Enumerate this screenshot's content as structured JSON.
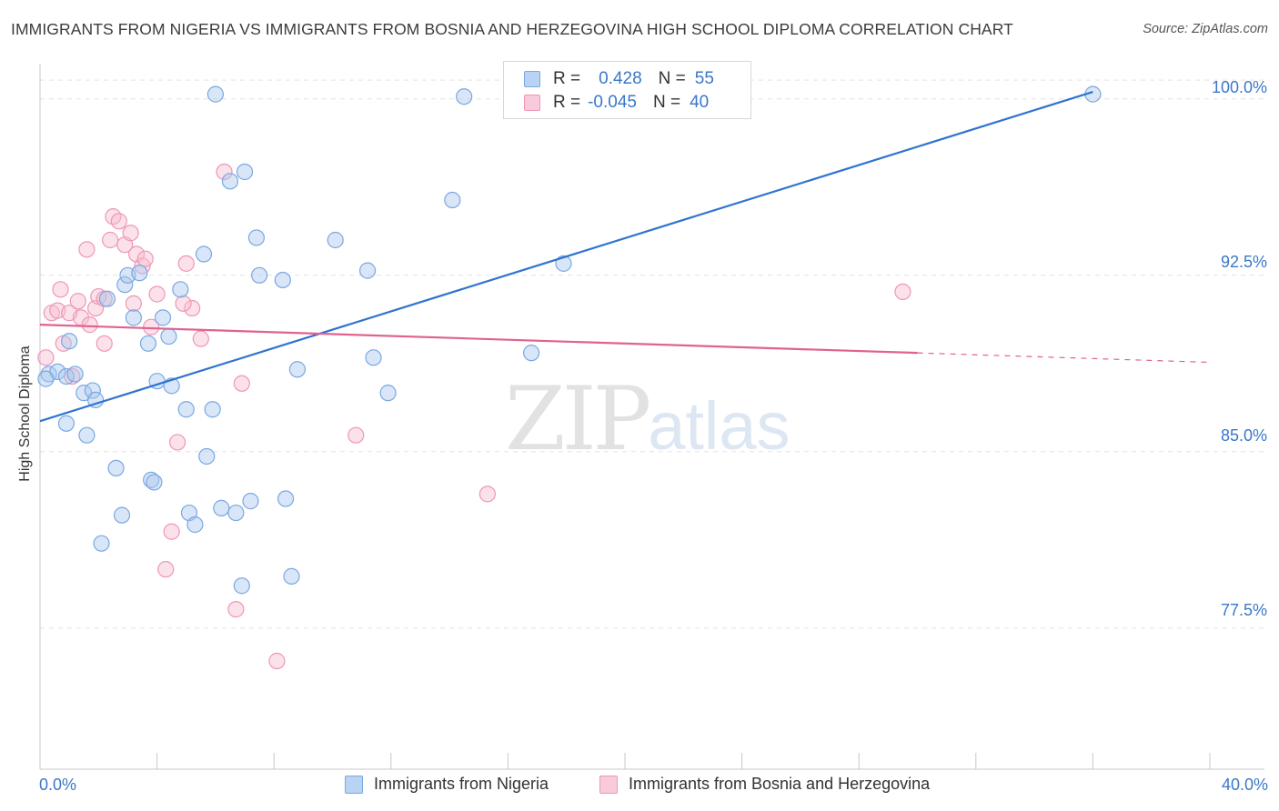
{
  "title": "IMMIGRANTS FROM NIGERIA VS IMMIGRANTS FROM BOSNIA AND HERZEGOVINA HIGH SCHOOL DIPLOMA CORRELATION CHART",
  "source": "Source: ZipAtlas.com",
  "watermark": {
    "zip": "ZIP",
    "atlas": "atlas"
  },
  "legend": {
    "rows": [
      {
        "r_label": "R =",
        "r_value": "0.428",
        "n_label": "N =",
        "n_value": "55"
      },
      {
        "r_label": "R =",
        "r_value": "-0.045",
        "n_label": "N =",
        "n_value": "40"
      }
    ]
  },
  "colors": {
    "blue_fill": "#a9c8ef",
    "blue_stroke": "#7aa8e0",
    "blue_line": "#2f74cf",
    "pink_fill": "#f6bcd0",
    "pink_stroke": "#ee97b6",
    "pink_line": "#e0628f",
    "grid": "#e3e3e3",
    "tick_text": "#3a78c9"
  },
  "chart_data": {
    "type": "scatter",
    "title": "IMMIGRANTS FROM NIGERIA VS IMMIGRANTS FROM BOSNIA AND HERZEGOVINA HIGH SCHOOL DIPLOMA CORRELATION CHART",
    "xlabel": "",
    "ylabel": "High School Diploma",
    "xlim": [
      0,
      40
    ],
    "ylim": [
      71.5,
      101.5
    ],
    "x_tick_labels": [
      "0.0%",
      "40.0%"
    ],
    "y_ticks": [
      77.5,
      85.0,
      92.5,
      100.0
    ],
    "y_tick_labels": [
      "77.5%",
      "85.0%",
      "92.5%",
      "100.0%"
    ],
    "grid": true,
    "series": [
      {
        "name": "Immigrants from Nigeria",
        "color": "blue",
        "trend": {
          "x": [
            0.0,
            36.0
          ],
          "y": [
            86.3,
            100.3
          ]
        },
        "points": [
          [
            0.3,
            88.3
          ],
          [
            0.6,
            88.4
          ],
          [
            0.9,
            88.2
          ],
          [
            1.2,
            88.3
          ],
          [
            1.0,
            89.7
          ],
          [
            1.5,
            87.5
          ],
          [
            1.8,
            87.6
          ],
          [
            1.9,
            87.2
          ],
          [
            0.9,
            86.2
          ],
          [
            1.6,
            85.7
          ],
          [
            2.3,
            91.5
          ],
          [
            2.6,
            84.3
          ],
          [
            2.8,
            82.3
          ],
          [
            2.1,
            81.1
          ],
          [
            2.9,
            92.1
          ],
          [
            3.0,
            92.5
          ],
          [
            3.2,
            90.7
          ],
          [
            3.4,
            92.6
          ],
          [
            3.7,
            89.6
          ],
          [
            3.8,
            83.8
          ],
          [
            3.9,
            83.7
          ],
          [
            4.0,
            88.0
          ],
          [
            4.2,
            90.7
          ],
          [
            4.4,
            89.9
          ],
          [
            4.5,
            87.8
          ],
          [
            4.8,
            91.9
          ],
          [
            5.0,
            86.8
          ],
          [
            5.1,
            82.4
          ],
          [
            5.3,
            81.9
          ],
          [
            5.6,
            93.4
          ],
          [
            5.7,
            84.8
          ],
          [
            5.9,
            86.8
          ],
          [
            6.0,
            100.2
          ],
          [
            6.2,
            82.6
          ],
          [
            6.5,
            96.5
          ],
          [
            6.7,
            82.4
          ],
          [
            6.9,
            79.3
          ],
          [
            7.0,
            96.9
          ],
          [
            7.2,
            82.9
          ],
          [
            7.4,
            94.1
          ],
          [
            7.5,
            92.5
          ],
          [
            8.3,
            92.3
          ],
          [
            8.4,
            83.0
          ],
          [
            8.6,
            79.7
          ],
          [
            8.8,
            88.5
          ],
          [
            10.1,
            94.0
          ],
          [
            11.2,
            92.7
          ],
          [
            11.4,
            89.0
          ],
          [
            11.9,
            87.5
          ],
          [
            14.1,
            95.7
          ],
          [
            14.5,
            100.1
          ],
          [
            16.8,
            89.2
          ],
          [
            17.9,
            93.0
          ],
          [
            36.0,
            100.2
          ],
          [
            0.2,
            88.1
          ]
        ]
      },
      {
        "name": "Immigrants from Bosnia and Herzegovina",
        "color": "pink",
        "trend": {
          "x": [
            0.0,
            30.0
          ],
          "y": [
            90.4,
            89.2
          ],
          "dashed_to": {
            "x": 40.0,
            "y": 88.8
          }
        },
        "points": [
          [
            0.2,
            89.0
          ],
          [
            0.4,
            90.9
          ],
          [
            0.6,
            91.0
          ],
          [
            0.7,
            91.9
          ],
          [
            0.8,
            89.6
          ],
          [
            1.0,
            90.9
          ],
          [
            1.1,
            88.2
          ],
          [
            1.3,
            91.4
          ],
          [
            1.4,
            90.7
          ],
          [
            1.6,
            93.6
          ],
          [
            1.7,
            90.4
          ],
          [
            1.9,
            91.1
          ],
          [
            2.0,
            91.6
          ],
          [
            2.2,
            91.5
          ],
          [
            2.2,
            89.6
          ],
          [
            2.4,
            94.0
          ],
          [
            2.5,
            95.0
          ],
          [
            2.7,
            94.8
          ],
          [
            2.9,
            93.8
          ],
          [
            3.1,
            94.3
          ],
          [
            3.2,
            91.3
          ],
          [
            3.3,
            93.4
          ],
          [
            3.5,
            92.9
          ],
          [
            3.6,
            93.2
          ],
          [
            3.8,
            90.3
          ],
          [
            4.0,
            91.7
          ],
          [
            4.3,
            80.0
          ],
          [
            4.5,
            81.6
          ],
          [
            4.7,
            85.4
          ],
          [
            5.0,
            93.0
          ],
          [
            5.2,
            91.1
          ],
          [
            5.5,
            89.8
          ],
          [
            6.3,
            96.9
          ],
          [
            6.7,
            78.3
          ],
          [
            6.9,
            87.9
          ],
          [
            8.1,
            76.1
          ],
          [
            10.8,
            85.7
          ],
          [
            15.3,
            83.2
          ],
          [
            29.5,
            91.8
          ],
          [
            4.9,
            91.3
          ]
        ]
      }
    ]
  }
}
